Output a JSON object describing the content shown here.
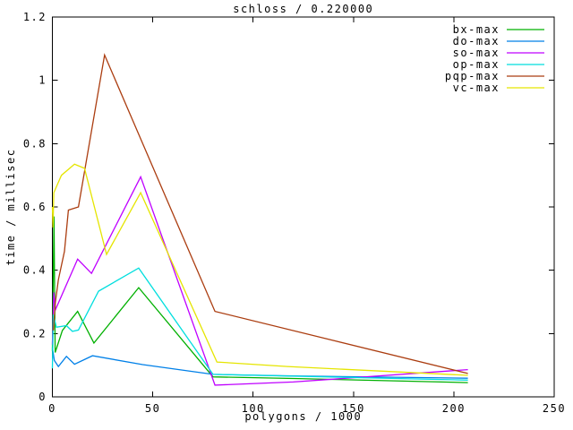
{
  "window": {
    "title": "schloss / 0.220000"
  },
  "chart_data": {
    "type": "line",
    "title": "schloss / 0.220000",
    "xlabel": "polygons / 1000",
    "ylabel": "time / millisec",
    "xlim": [
      0,
      250
    ],
    "ylim": [
      0,
      1.2
    ],
    "grid": false,
    "legend_position": "top-right-inside",
    "background_color": "#ffffff",
    "axis_color": "#000000",
    "xticks": [
      {
        "v": 0,
        "label": "0"
      },
      {
        "v": 50,
        "label": "50"
      },
      {
        "v": 100,
        "label": "100"
      },
      {
        "v": 150,
        "label": "150"
      },
      {
        "v": 200,
        "label": "200"
      },
      {
        "v": 250,
        "label": "250"
      }
    ],
    "yticks": [
      {
        "v": 0,
        "label": "0"
      },
      {
        "v": 0.2,
        "label": "0.2"
      },
      {
        "v": 0.4,
        "label": "0.4"
      },
      {
        "v": 0.6,
        "label": "0.6"
      },
      {
        "v": 0.8,
        "label": "0.8"
      },
      {
        "v": 1.0,
        "label": "1"
      },
      {
        "v": 1.2,
        "label": "1.2"
      }
    ],
    "series": [
      {
        "name": "bx-max",
        "color": "#00b000",
        "points": [
          [
            0,
            0.145
          ],
          [
            0.8,
            0.57
          ],
          [
            1.4,
            0.14
          ],
          [
            5,
            0.21
          ],
          [
            12.6,
            0.27
          ],
          [
            20.7,
            0.17
          ],
          [
            43,
            0.345
          ],
          [
            80,
            0.063
          ],
          [
            120,
            0.058
          ],
          [
            207,
            0.045
          ]
        ]
      },
      {
        "name": "do-max",
        "color": "#0080e8",
        "points": [
          [
            0,
            0.155
          ],
          [
            1,
            0.115
          ],
          [
            3,
            0.096
          ],
          [
            7,
            0.128
          ],
          [
            11,
            0.103
          ],
          [
            20,
            0.13
          ],
          [
            45,
            0.102
          ],
          [
            80,
            0.071
          ],
          [
            120,
            0.066
          ],
          [
            207,
            0.059
          ]
        ]
      },
      {
        "name": "so-max",
        "color": "#bf00ff",
        "points": [
          [
            0,
            0.165
          ],
          [
            0.7,
            0.33
          ],
          [
            1.5,
            0.275
          ],
          [
            12.6,
            0.435
          ],
          [
            19.5,
            0.39
          ],
          [
            44,
            0.695
          ],
          [
            81,
            0.037
          ],
          [
            120,
            0.047
          ],
          [
            207,
            0.086
          ]
        ]
      },
      {
        "name": "op-max",
        "color": "#00dede",
        "points": [
          [
            0,
            0.09
          ],
          [
            0.5,
            0.26
          ],
          [
            2,
            0.22
          ],
          [
            7,
            0.225
          ],
          [
            10,
            0.207
          ],
          [
            13,
            0.211
          ],
          [
            23,
            0.334
          ],
          [
            43,
            0.407
          ],
          [
            80,
            0.071
          ],
          [
            207,
            0.053
          ]
        ]
      },
      {
        "name": "pqp-max",
        "color": "#ab3d10",
        "points": [
          [
            0.5,
            0.21
          ],
          [
            1.5,
            0.3
          ],
          [
            3,
            0.37
          ],
          [
            6,
            0.46
          ],
          [
            8,
            0.59
          ],
          [
            13,
            0.6
          ],
          [
            26,
            1.08
          ],
          [
            81,
            0.27
          ],
          [
            207,
            0.074
          ]
        ]
      },
      {
        "name": "vc-max",
        "color": "#e5e500",
        "points": [
          [
            0,
            0.6
          ],
          [
            0.3,
            0.535
          ],
          [
            0.7,
            0.645
          ],
          [
            4.5,
            0.7
          ],
          [
            11,
            0.735
          ],
          [
            16,
            0.722
          ],
          [
            27,
            0.45
          ],
          [
            44,
            0.645
          ],
          [
            82,
            0.11
          ],
          [
            117,
            0.096
          ],
          [
            207,
            0.068
          ]
        ]
      }
    ]
  }
}
